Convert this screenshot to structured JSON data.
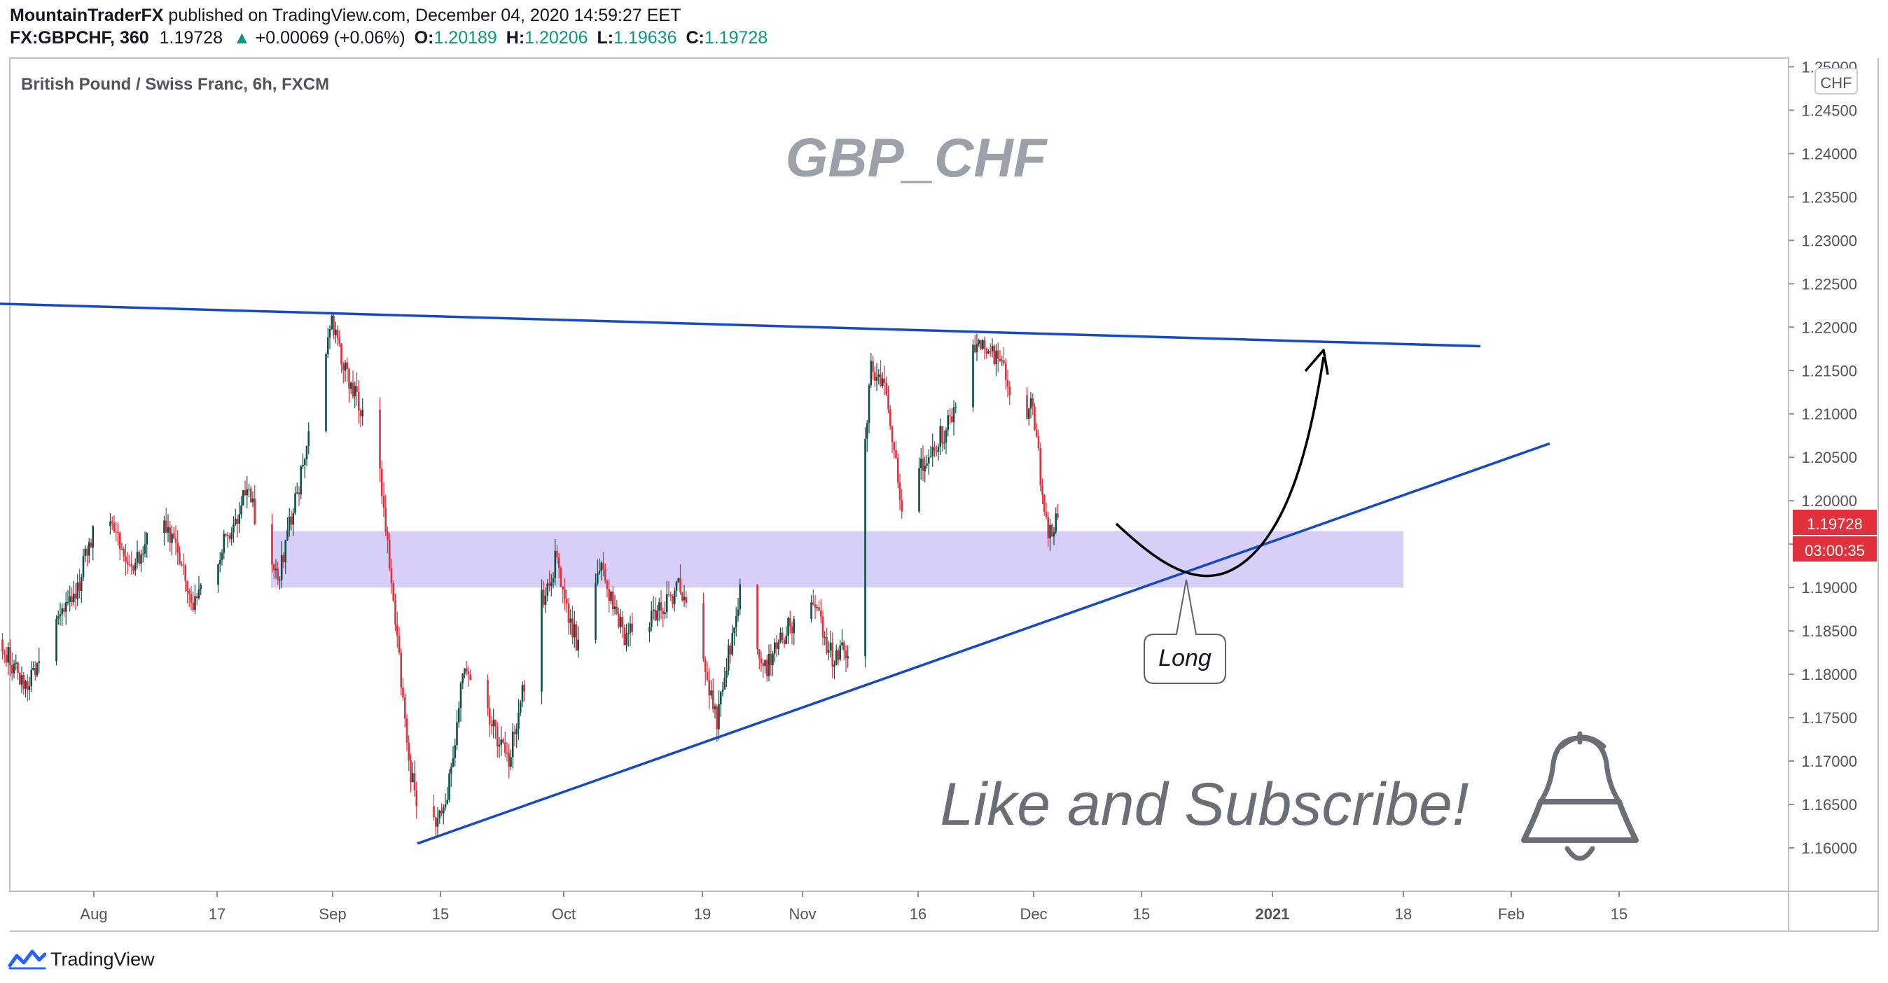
{
  "header": {
    "author": "MountainTraderFX",
    "published": "published on TradingView.com, December 04, 2020 14:59:27 EET",
    "symbol": "FX:GBPCHF, 360",
    "last": "1.19728",
    "change_arrow": "▲",
    "change": "+0.00069 (+0.06%)",
    "o_label": "O:",
    "o_value": "1.20189",
    "h_label": "H:",
    "h_value": "1.20206",
    "l_label": "L:",
    "l_value": "1.19636",
    "c_label": "C:",
    "c_value": "1.19728"
  },
  "chart_data": {
    "type": "candlestick",
    "title": "British Pound / Swiss Franc, 6h, FXCM",
    "watermark": "GBP_CHF",
    "currency": "CHF",
    "ylim": [
      1.155,
      1.251
    ],
    "y_ticks": [
      "1.25000",
      "1.24500",
      "1.24000",
      "1.23500",
      "1.23000",
      "1.22500",
      "1.22000",
      "1.21500",
      "1.21000",
      "1.20500",
      "1.20000",
      "1.19500",
      "1.19000",
      "1.18500",
      "1.18000",
      "1.17500",
      "1.17000",
      "1.16500",
      "1.16000"
    ],
    "x_ticks": [
      {
        "label": "Aug",
        "date": "2020-08-01"
      },
      {
        "label": "17",
        "date": "2020-08-17"
      },
      {
        "label": "Sep",
        "date": "2020-09-01"
      },
      {
        "label": "15",
        "date": "2020-09-15"
      },
      {
        "label": "Oct",
        "date": "2020-10-01"
      },
      {
        "label": "19",
        "date": "2020-10-19"
      },
      {
        "label": "Nov",
        "date": "2020-11-01"
      },
      {
        "label": "16",
        "date": "2020-11-16"
      },
      {
        "label": "Dec",
        "date": "2020-12-01"
      },
      {
        "label": "15",
        "date": "2020-12-15"
      },
      {
        "label": "2021",
        "date": "2021-01-01"
      },
      {
        "label": "18",
        "date": "2021-01-18"
      },
      {
        "label": "Feb",
        "date": "2021-02-01"
      },
      {
        "label": "15",
        "date": "2021-02-15"
      }
    ],
    "key_points": [
      {
        "date": "2020-07-20",
        "price": 1.184
      },
      {
        "date": "2020-07-23",
        "price": 1.1785
      },
      {
        "date": "2020-07-30",
        "price": 1.19
      },
      {
        "date": "2020-08-02",
        "price": 1.2
      },
      {
        "date": "2020-08-06",
        "price": 1.192
      },
      {
        "date": "2020-08-10",
        "price": 1.1985
      },
      {
        "date": "2020-08-14",
        "price": 1.188
      },
      {
        "date": "2020-08-18",
        "price": 1.195
      },
      {
        "date": "2020-08-21",
        "price": 1.201
      },
      {
        "date": "2020-08-25",
        "price": 1.191
      },
      {
        "date": "2020-08-28",
        "price": 1.203
      },
      {
        "date": "2020-09-01",
        "price": 1.2205
      },
      {
        "date": "2020-09-04",
        "price": 1.212
      },
      {
        "date": "2020-09-07",
        "price": 1.206
      },
      {
        "date": "2020-09-09",
        "price": 1.188
      },
      {
        "date": "2020-09-11",
        "price": 1.17
      },
      {
        "date": "2020-09-13",
        "price": 1.1605
      },
      {
        "date": "2020-09-16",
        "price": 1.166
      },
      {
        "date": "2020-09-18",
        "price": 1.18
      },
      {
        "date": "2020-09-21",
        "price": 1.1755
      },
      {
        "date": "2020-09-24",
        "price": 1.17
      },
      {
        "date": "2020-09-28",
        "price": 1.188
      },
      {
        "date": "2020-09-30",
        "price": 1.193
      },
      {
        "date": "2020-10-03",
        "price": 1.183
      },
      {
        "date": "2020-10-06",
        "price": 1.192
      },
      {
        "date": "2020-10-09",
        "price": 1.184
      },
      {
        "date": "2020-10-13",
        "price": 1.187
      },
      {
        "date": "2020-10-16",
        "price": 1.19
      },
      {
        "date": "2020-10-19",
        "price": 1.182
      },
      {
        "date": "2020-10-21",
        "price": 1.1745
      },
      {
        "date": "2020-10-24",
        "price": 1.19
      },
      {
        "date": "2020-10-27",
        "price": 1.18
      },
      {
        "date": "2020-10-30",
        "price": 1.185
      },
      {
        "date": "2020-11-02",
        "price": 1.189
      },
      {
        "date": "2020-11-05",
        "price": 1.182
      },
      {
        "date": "2020-11-08",
        "price": 1.1835
      },
      {
        "date": "2020-11-09",
        "price": 1.204
      },
      {
        "date": "2020-11-10",
        "price": 1.215
      },
      {
        "date": "2020-11-12",
        "price": 1.213
      },
      {
        "date": "2020-11-14",
        "price": 1.1995
      },
      {
        "date": "2020-11-18",
        "price": 1.206
      },
      {
        "date": "2020-11-21",
        "price": 1.21
      },
      {
        "date": "2020-11-24",
        "price": 1.219
      },
      {
        "date": "2020-11-27",
        "price": 1.2155
      },
      {
        "date": "2020-11-29",
        "price": 1.208
      },
      {
        "date": "2020-12-01",
        "price": 1.211
      },
      {
        "date": "2020-12-02",
        "price": 1.203
      },
      {
        "date": "2020-12-03",
        "price": 1.196
      },
      {
        "date": "2020-12-04",
        "price": 1.1973
      }
    ],
    "last_price": "1.19728",
    "countdown": "03:00:35",
    "annotations": {
      "zone": {
        "price_from": 1.19,
        "price_to": 1.1965,
        "date_from": "2020-08-24",
        "date_to": "2021-01-18"
      },
      "resistance_line": {
        "from": {
          "date": "2020-07-20",
          "price": 1.2232
        },
        "to": {
          "date": "2021-01-28",
          "price": 1.2178
        }
      },
      "support_line": {
        "from": {
          "date": "2020-09-12",
          "price": 1.1605
        },
        "to": {
          "date": "2021-02-06",
          "price": 1.2066
        }
      },
      "callout": "Long",
      "message": "Like and Subscribe!"
    }
  },
  "footer": {
    "brand": "TradingView"
  },
  "colors": {
    "up": "#0d4f46",
    "down": "#e02e3a",
    "trendline": "#1549c7",
    "zone": "rgba(160,140,235,0.42)",
    "background": "#ffffff",
    "price_label": "#e0313c"
  }
}
